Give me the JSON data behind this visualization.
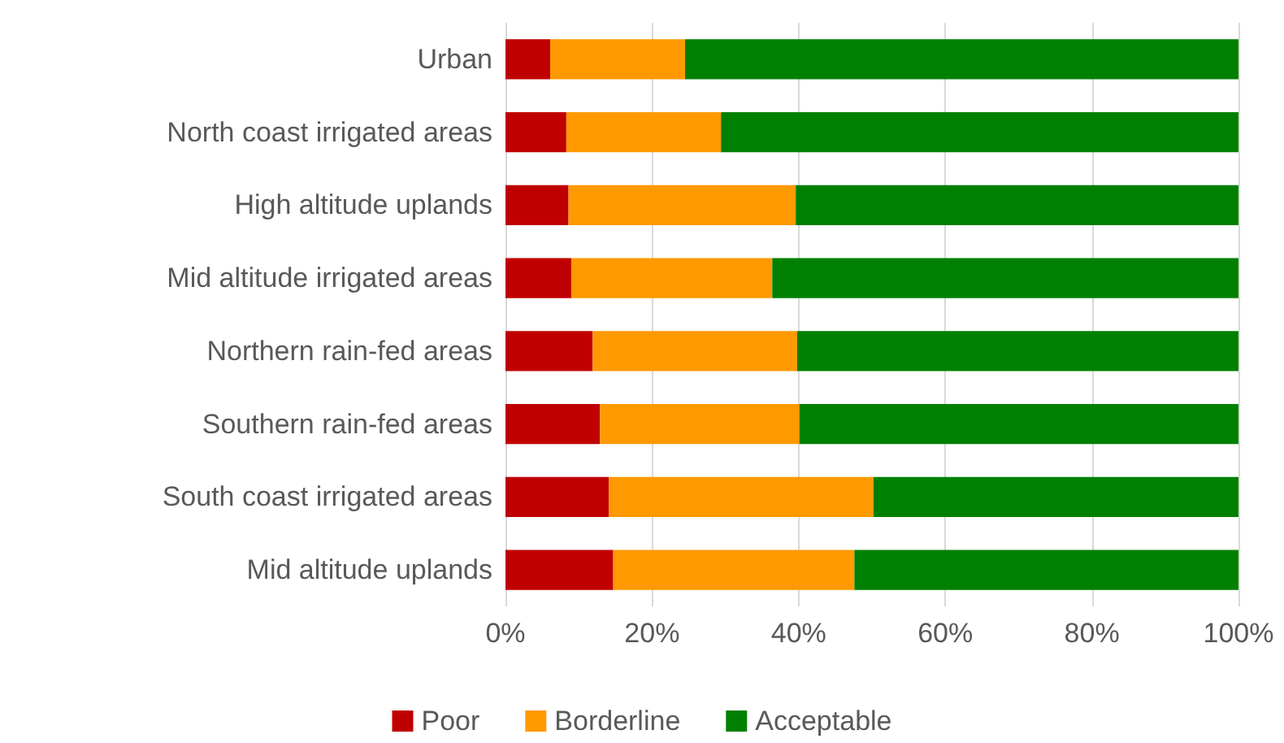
{
  "chart_data": {
    "type": "bar",
    "orientation": "horizontal",
    "stacked": true,
    "categories": [
      "Urban",
      "North coast irrigated areas",
      "High altitude uplands",
      "Mid altitude irrigated areas",
      "Northern rain-fed areas",
      "Southern rain-fed areas",
      "South coast irrigated areas",
      "Mid altitude uplands"
    ],
    "series": [
      {
        "name": "Poor",
        "color": "#c00000",
        "values": [
          6.1,
          8.3,
          8.6,
          9.0,
          11.9,
          12.9,
          14.1,
          14.7
        ]
      },
      {
        "name": "Borderline",
        "color": "#ff9900",
        "values": [
          18.4,
          21.1,
          31.0,
          27.4,
          27.9,
          27.2,
          36.1,
          32.9
        ]
      },
      {
        "name": "Acceptable",
        "color": "#008000",
        "values": [
          75.5,
          70.6,
          60.4,
          63.6,
          60.2,
          59.9,
          49.8,
          52.4
        ]
      }
    ],
    "xlim": [
      0,
      100
    ],
    "xticks": [
      {
        "value": 0,
        "label": "0%"
      },
      {
        "value": 20,
        "label": "20%"
      },
      {
        "value": 40,
        "label": "40%"
      },
      {
        "value": 60,
        "label": "60%"
      },
      {
        "value": 80,
        "label": "80%"
      },
      {
        "value": 100,
        "label": "100%"
      }
    ],
    "grid": "x",
    "legend": "bottom"
  }
}
